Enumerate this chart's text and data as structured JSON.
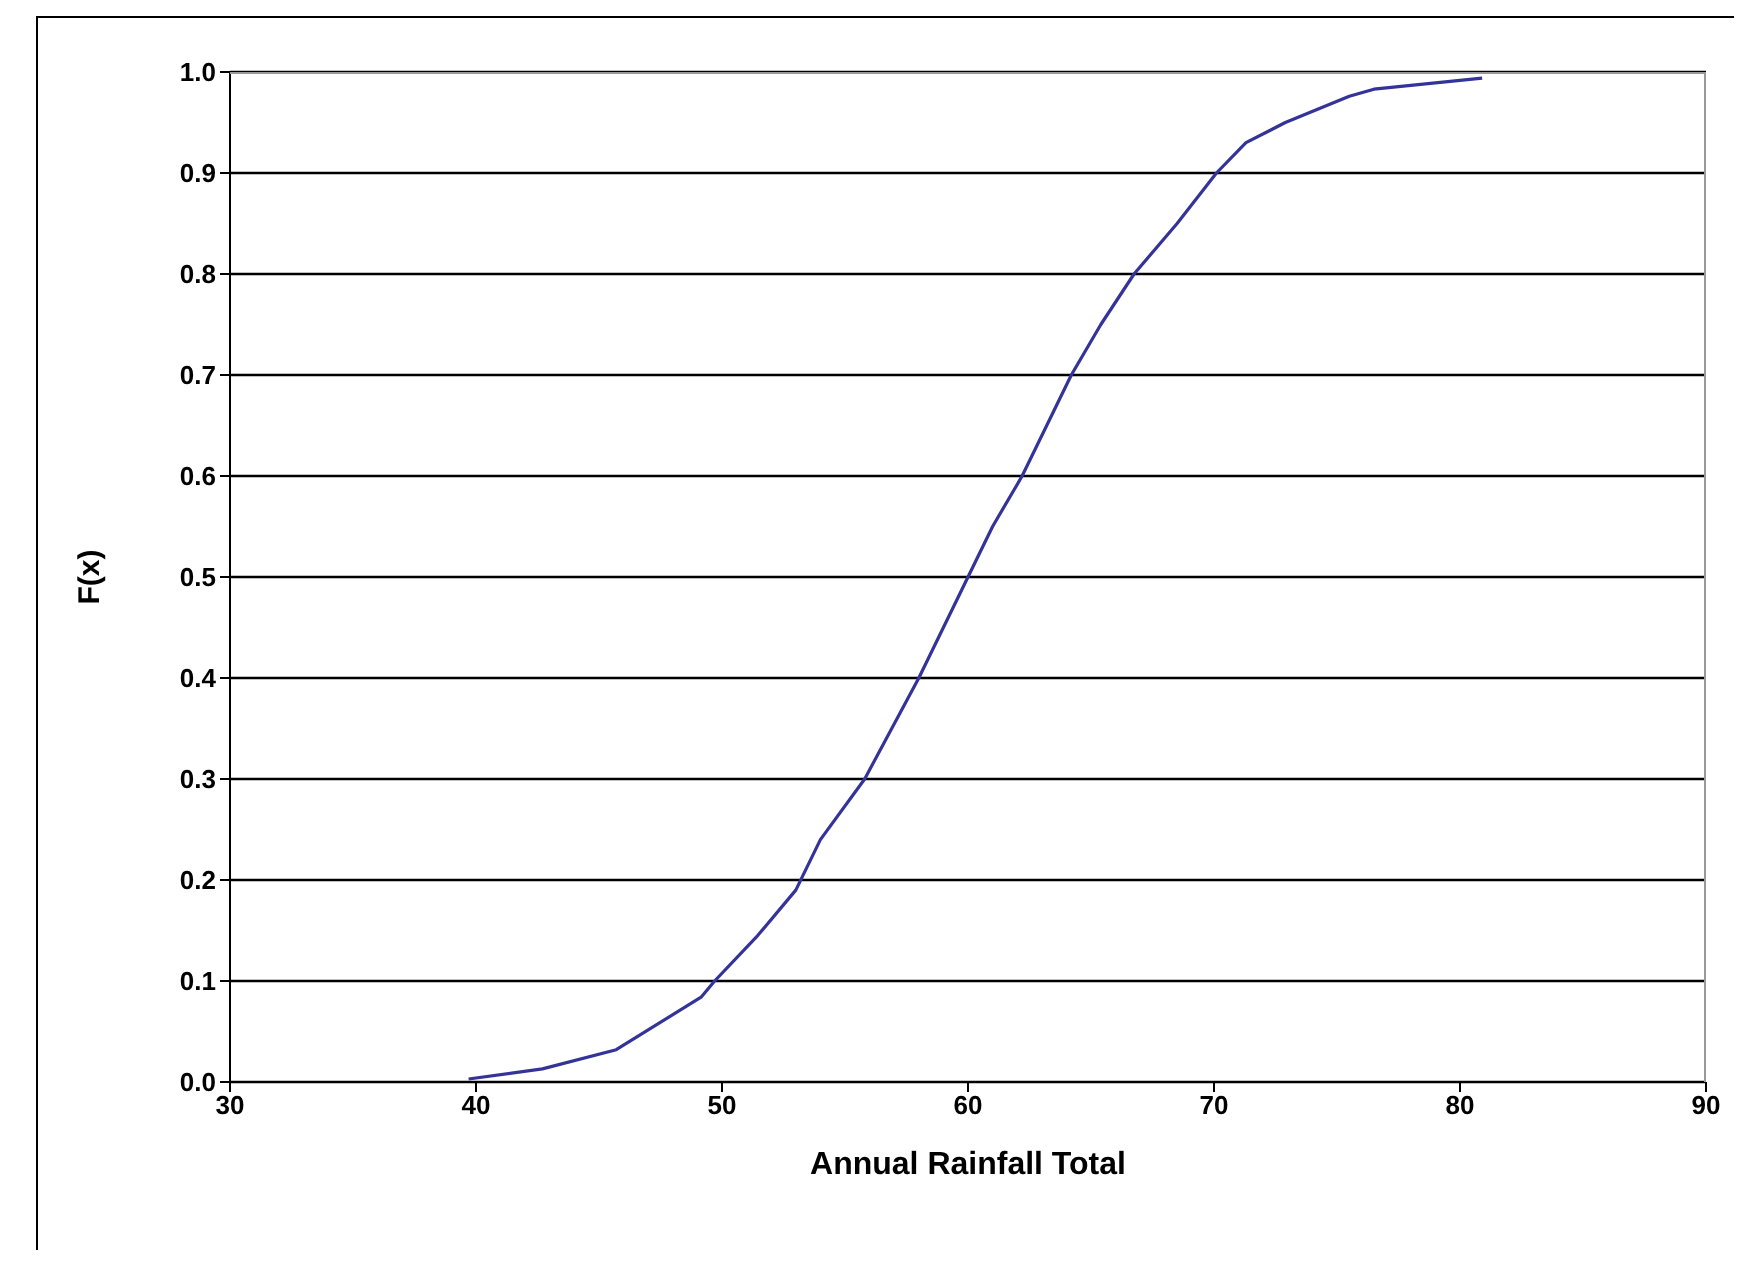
{
  "chart_data": {
    "type": "line",
    "xlabel": "Annual Rainfall Total",
    "ylabel": "F(x)",
    "series": [
      {
        "color": "#333399",
        "x": [
          39.7,
          42.7,
          45.7,
          49.15,
          49.7,
          51.45,
          53.0,
          54.0,
          55.8,
          58.0,
          60.0,
          61.0,
          62.2,
          63.2,
          64.2,
          65.4,
          66.75,
          68.5,
          70.1,
          71.3,
          72.9,
          75.5,
          76.5,
          80.9
        ],
        "values": [
          0.003,
          0.013,
          0.032,
          0.084,
          0.1,
          0.145,
          0.19,
          0.24,
          0.3,
          0.4,
          0.5,
          0.55,
          0.6,
          0.65,
          0.7,
          0.75,
          0.8,
          0.85,
          0.9,
          0.93,
          0.95,
          0.976,
          0.983,
          0.994
        ]
      }
    ],
    "xlim": [
      30,
      90
    ],
    "xticks": [
      30,
      40,
      50,
      60,
      70,
      80,
      90
    ],
    "ylim": [
      0,
      1
    ],
    "yticks": [
      {
        "value": 0,
        "label": "0.0"
      },
      0.1,
      0.2,
      0.3,
      0.4,
      0.5,
      0.6,
      0.7,
      0.8,
      0.9,
      {
        "value": 1,
        "label": "1.0"
      }
    ],
    "grid": "y",
    "marker": "none",
    "line_style": "solid"
  }
}
